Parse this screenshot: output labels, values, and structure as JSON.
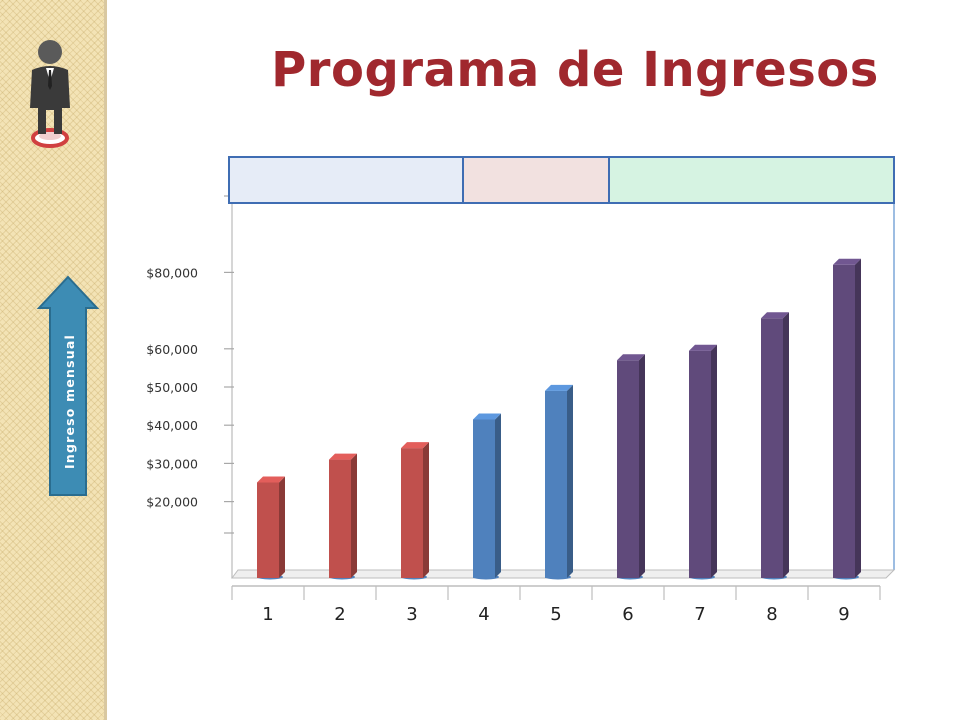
{
  "title": "Programa de Ingresos",
  "arrow_label": "Ingreso mensual",
  "chart_data": {
    "type": "bar",
    "title": "Programa de Ingresos",
    "ylabel": "Ingreso mensual",
    "xlabel": "",
    "categories": [
      "1",
      "2",
      "3",
      "4",
      "5",
      "6",
      "7",
      "8",
      "9"
    ],
    "values": [
      25000,
      31000,
      34000,
      41500,
      49000,
      57000,
      59500,
      68000,
      82000
    ],
    "bar_colors": [
      "#c0504d",
      "#c0504d",
      "#c0504d",
      "#4f81bd",
      "#4f81bd",
      "#604a7b",
      "#604a7b",
      "#604a7b",
      "#604a7b"
    ],
    "ytick_labels": [
      "$20,000",
      "$30,000",
      "$40,000",
      "$50,000",
      "$60,000",
      "$80,000"
    ],
    "ytick_values": [
      20000,
      30000,
      40000,
      50000,
      60000,
      80000
    ],
    "ylim": [
      0,
      100000
    ],
    "grid": false,
    "legend": "none"
  },
  "header_boxes": [
    {
      "name": "header-box-1",
      "color": "#e6ecf7"
    },
    {
      "name": "header-box-2",
      "color": "#f2e1e0"
    },
    {
      "name": "header-box-3",
      "color": "#d6f3e2"
    }
  ],
  "icons": {
    "person": "person-icon",
    "arrow": "up-arrow-icon"
  }
}
